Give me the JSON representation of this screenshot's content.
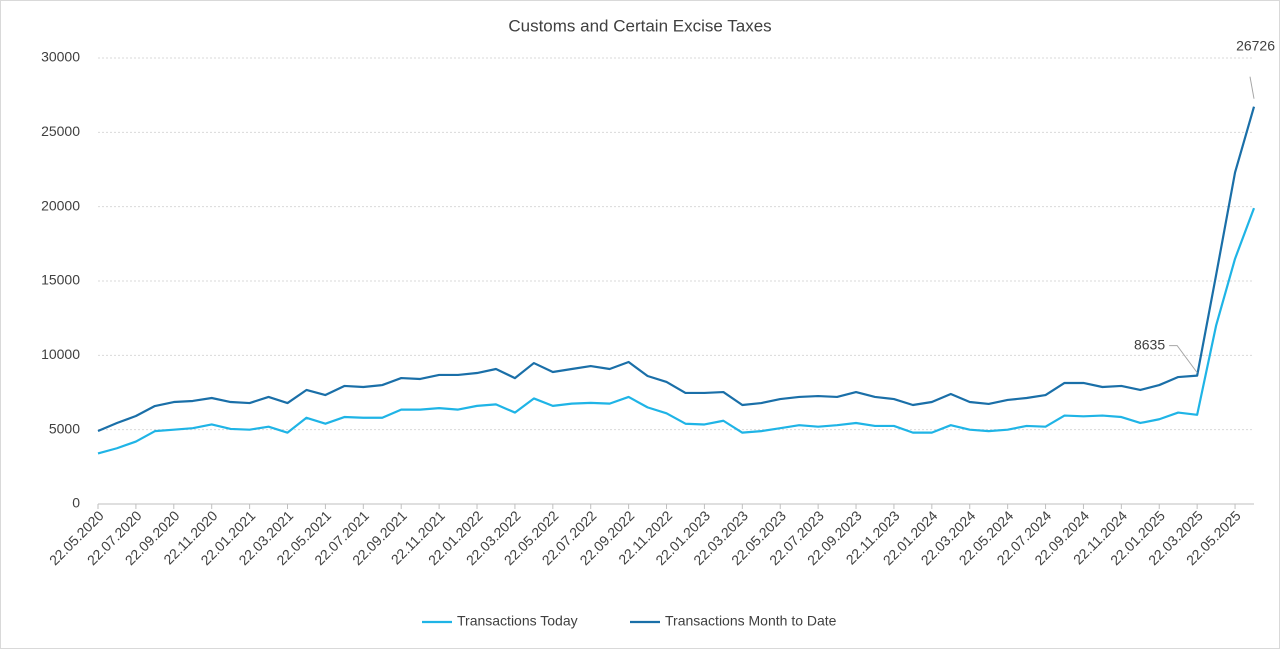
{
  "chart_data": {
    "type": "line",
    "title": "Customs and Certain Excise Taxes",
    "categories": [
      "22.05.2020",
      null,
      "22.07.2020",
      null,
      "22.09.2020",
      null,
      "22.11.2020",
      null,
      "22.01.2021",
      null,
      "22.03.2021",
      null,
      "22.05.2021",
      null,
      "22.07.2021",
      null,
      "22.09.2021",
      null,
      "22.11.2021",
      null,
      "22.01.2022",
      null,
      "22.03.2022",
      null,
      "22.05.2022",
      null,
      "22.07.2022",
      null,
      "22.09.2022",
      null,
      "22.11.2022",
      null,
      "22.01.2023",
      null,
      "22.03.2023",
      null,
      "22.05.2023",
      null,
      "22.07.2023",
      null,
      "22.09.2023",
      null,
      "22.11.2023",
      null,
      "22.01.2024",
      null,
      "22.03.2024",
      null,
      "22.05.2024",
      null,
      "22.07.2024",
      null,
      "22.09.2024",
      null,
      "22.11.2024",
      null,
      "22.01.2025",
      null,
      "22.03.2025",
      null,
      "22.05.2025",
      null
    ],
    "series": [
      {
        "name": "Transactions Today",
        "color": "#1fb4e6",
        "values": [
          3400,
          3750,
          4200,
          4900,
          5000,
          5100,
          5350,
          5050,
          5000,
          5200,
          4800,
          5800,
          5400,
          5850,
          5800,
          5800,
          6350,
          6350,
          6450,
          6350,
          6600,
          6700,
          6150,
          7100,
          6600,
          6750,
          6800,
          6750,
          7200,
          6500,
          6100,
          5400,
          5350,
          5600,
          4800,
          4900,
          5100,
          5300,
          5200,
          5300,
          5450,
          5250,
          5250,
          4800,
          4800,
          5300,
          5000,
          4900,
          5000,
          5250,
          5200,
          5950,
          5900,
          5950,
          5850,
          5450,
          5700,
          6150,
          6000,
          12000,
          16500,
          19900
        ]
      },
      {
        "name": "Transactions Month to Date",
        "color": "#1a6fa8",
        "labels_at": [
          58,
          61
        ],
        "values": [
          4910,
          5450,
          5920,
          6590,
          6860,
          6930,
          7130,
          6860,
          6790,
          7200,
          6790,
          7670,
          7330,
          7940,
          7870,
          8000,
          8470,
          8410,
          8680,
          8680,
          8810,
          9080,
          8470,
          9480,
          8880,
          9080,
          9280,
          9080,
          9550,
          8610,
          8210,
          7470,
          7470,
          7530,
          6660,
          6790,
          7060,
          7200,
          7260,
          7200,
          7530,
          7200,
          7060,
          6660,
          6860,
          7400,
          6860,
          6730,
          7000,
          7130,
          7330,
          8140,
          8140,
          7870,
          7940,
          7670,
          8000,
          8540,
          8635,
          15400,
          22300,
          26726
        ]
      }
    ],
    "ylim": [
      0,
      30000
    ],
    "yticks": [
      0,
      5000,
      10000,
      15000,
      20000,
      25000,
      30000
    ],
    "grid": true,
    "legend": "bottom"
  }
}
